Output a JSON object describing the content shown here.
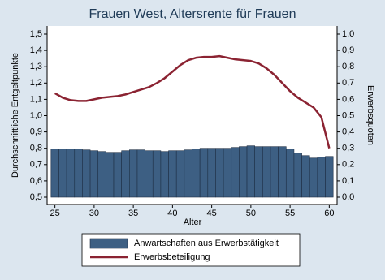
{
  "chart_data": {
    "type": "bar",
    "title": "Frauen West, Altersrente für Frauen",
    "x_label": "Alter",
    "y_label": "Durchschnittliche Entgeltpunkte",
    "y2_label": "Erwerbsquoten",
    "x": [
      25,
      26,
      27,
      28,
      29,
      30,
      31,
      32,
      33,
      34,
      35,
      36,
      37,
      38,
      39,
      40,
      41,
      42,
      43,
      44,
      45,
      46,
      47,
      48,
      49,
      50,
      51,
      52,
      53,
      54,
      55,
      56,
      57,
      58,
      59,
      60
    ],
    "xlim": [
      24,
      61
    ],
    "xticks": [
      25,
      30,
      35,
      40,
      45,
      50,
      55,
      60
    ],
    "ylim": [
      0.5,
      1.5
    ],
    "yticks": [
      {
        "value": 0.5,
        "label": "0,5"
      },
      {
        "value": 0.6,
        "label": "0,6"
      },
      {
        "value": 0.7,
        "label": "0,7"
      },
      {
        "value": 0.8,
        "label": "0,8"
      },
      {
        "value": 0.9,
        "label": "0,9"
      },
      {
        "value": 1.0,
        "label": "1,0"
      },
      {
        "value": 1.1,
        "label": "1,1"
      },
      {
        "value": 1.2,
        "label": "1,2"
      },
      {
        "value": 1.3,
        "label": "1,3"
      },
      {
        "value": 1.4,
        "label": "1,4"
      },
      {
        "value": 1.5,
        "label": "1,5"
      }
    ],
    "y2lim": [
      0,
      1
    ],
    "y2ticks": [
      {
        "value": 0.0,
        "label": "0,0"
      },
      {
        "value": 0.1,
        "label": "0,1"
      },
      {
        "value": 0.2,
        "label": "0,2"
      },
      {
        "value": 0.3,
        "label": "0,3"
      },
      {
        "value": 0.4,
        "label": "0,4"
      },
      {
        "value": 0.5,
        "label": "0,5"
      },
      {
        "value": 0.6,
        "label": "0,6"
      },
      {
        "value": 0.7,
        "label": "0,7"
      },
      {
        "value": 0.8,
        "label": "0,8"
      },
      {
        "value": 0.9,
        "label": "0,9"
      },
      {
        "value": 1.0,
        "label": "1,0"
      }
    ],
    "series": [
      {
        "name": "Anwartschaften aus Erwerbstätigkeit",
        "type": "bar",
        "color": "#3d5f83",
        "values": [
          0.795,
          0.795,
          0.795,
          0.795,
          0.79,
          0.785,
          0.78,
          0.775,
          0.775,
          0.785,
          0.79,
          0.79,
          0.785,
          0.785,
          0.78,
          0.785,
          0.785,
          0.79,
          0.795,
          0.8,
          0.8,
          0.8,
          0.8,
          0.805,
          0.81,
          0.815,
          0.81,
          0.81,
          0.81,
          0.81,
          0.795,
          0.77,
          0.755,
          0.74,
          0.745,
          0.75
        ]
      },
      {
        "name": "Erwerbsbeteiligung",
        "type": "line",
        "axis": "y2",
        "color": "#8b2332",
        "values": [
          0.637,
          0.61,
          0.595,
          0.59,
          0.59,
          0.6,
          0.61,
          0.615,
          0.62,
          0.63,
          0.645,
          0.66,
          0.675,
          0.7,
          0.73,
          0.77,
          0.81,
          0.84,
          0.855,
          0.86,
          0.86,
          0.865,
          0.855,
          0.845,
          0.84,
          0.835,
          0.82,
          0.79,
          0.75,
          0.7,
          0.65,
          0.61,
          0.58,
          0.55,
          0.49,
          0.3
        ]
      }
    ]
  }
}
